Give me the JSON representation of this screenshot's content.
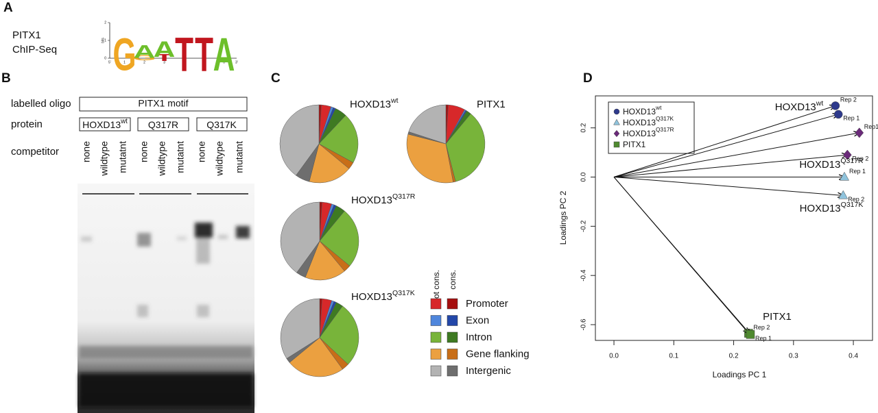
{
  "panel_a": {
    "label": "A",
    "lines": [
      "PITX1",
      "ChIP-Seq"
    ],
    "logo": {
      "y_label": "bits",
      "ylim": [
        0,
        2
      ],
      "yticks": [
        0,
        1,
        2
      ],
      "positions": [
        {
          "index": "1",
          "letters": [
            {
              "letter": "G",
              "bits": 1.85
            }
          ]
        },
        {
          "index": "2",
          "letters": [
            {
              "letter": "G",
              "bits": 0.3
            },
            {
              "letter": "A",
              "bits": 0.75
            }
          ]
        },
        {
          "index": "3",
          "letters": [
            {
              "letter": "T",
              "bits": 0.4
            },
            {
              "letter": "A",
              "bits": 0.9
            }
          ]
        },
        {
          "index": "4",
          "letters": [
            {
              "letter": "T",
              "bits": 1.95
            }
          ]
        },
        {
          "index": "5",
          "letters": [
            {
              "letter": "T",
              "bits": 1.95
            }
          ]
        },
        {
          "index": "6",
          "letters": [
            {
              "letter": "A",
              "bits": 1.9
            }
          ]
        }
      ],
      "end_5": "5'",
      "end_3": "3'",
      "colors": {
        "A": "#6dbf2b",
        "G": "#efa623",
        "T": "#c1161e"
      }
    }
  },
  "panel_b": {
    "label": "B",
    "row_labels": [
      "labelled oligo",
      "protein",
      "competitor"
    ],
    "oligo": "PITX1 motif",
    "proteins": [
      {
        "base": "HOXD13",
        "sup": "wt"
      },
      {
        "base": "Q317R"
      },
      {
        "base": "Q317K"
      }
    ],
    "competitors": [
      "none",
      "wildtype",
      "mutatnt",
      "none",
      "wildtype",
      "mutatnt",
      "none",
      "wildtype",
      "mutatnt"
    ]
  },
  "panel_c": {
    "type": "pie",
    "label": "C",
    "slice_colors": [
      "#a50f0f",
      "#d7282a",
      "#4f86dc",
      "#2347a8",
      "#3e7a22",
      "#78b43a",
      "#c86e18",
      "#eba040",
      "#6e6e6e",
      "#b3b3b3"
    ],
    "pies": [
      {
        "title": "HOXD13",
        "title_sup": "wt",
        "values": [
          1,
          4,
          1,
          1,
          5,
          21,
          3,
          18,
          6,
          40
        ]
      },
      {
        "title": "PITX1",
        "values": [
          1,
          7,
          0.5,
          0.5,
          2,
          35,
          1,
          32,
          1,
          20
        ]
      },
      {
        "title": "HOXD13",
        "title_sup": "Q317R",
        "values": [
          1,
          4,
          1,
          1,
          4,
          25,
          3,
          17,
          4,
          40
        ]
      },
      {
        "title": "HOXD13",
        "title_sup": "Q317K",
        "values": [
          1,
          4,
          1,
          1,
          3,
          27,
          3,
          24,
          2,
          34
        ]
      }
    ],
    "legend_headers": [
      "not cons.",
      "cons."
    ],
    "legend": [
      {
        "name": "Promoter",
        "not_cons_color": "#d7282a",
        "cons_color": "#a50f0f"
      },
      {
        "name": "Exon",
        "not_cons_color": "#4f86dc",
        "cons_color": "#2347a8"
      },
      {
        "name": "Intron",
        "not_cons_color": "#78b43a",
        "cons_color": "#3e7a22"
      },
      {
        "name": "Gene flanking",
        "not_cons_color": "#eba040",
        "cons_color": "#c86e18"
      },
      {
        "name": "Intergenic",
        "not_cons_color": "#b3b3b3",
        "cons_color": "#6e6e6e"
      }
    ]
  },
  "panel_d": {
    "type": "scatter",
    "label": "D",
    "x_label": "Loadings PC 1",
    "y_label": "Loadings PC 2",
    "xlim": [
      -0.031,
      0.432
    ],
    "ylim": [
      -0.664,
      0.33
    ],
    "xticks": [
      {
        "value": 0,
        "label": "0.0"
      },
      0.1,
      0.2,
      0.3,
      0.4
    ],
    "yticks": [
      -0.6,
      -0.4,
      -0.2,
      {
        "value": 0,
        "label": "0.0"
      },
      0.2
    ],
    "series": [
      {
        "name": "HOXD13",
        "name_sup": "wt",
        "marker": "circle",
        "color": "#2e3a8c",
        "x": [
          0.37,
          0.375
        ],
        "y": [
          0.29,
          0.255
        ],
        "point_labels": [
          "Rep 2",
          "Rep 1"
        ]
      },
      {
        "name": "HOXD13",
        "name_sup": "Q317K",
        "marker": "triangle",
        "color": "#8fc3dc",
        "x": [
          0.385,
          0.383
        ],
        "y": [
          0.0,
          -0.075
        ],
        "point_labels": [
          "Rep 1",
          "Rep 2"
        ]
      },
      {
        "name": "HOXD13",
        "name_sup": "Q317R",
        "marker": "diamond",
        "color": "#6b2a7a",
        "x": [
          0.41,
          0.39
        ],
        "y": [
          0.18,
          0.09
        ],
        "point_labels": [
          "Rep1",
          "Rep 2"
        ]
      },
      {
        "name": "PITX1",
        "marker": "square",
        "color": "#4f8a2f",
        "x": [
          0.225,
          0.228
        ],
        "y": [
          -0.635,
          -0.64
        ],
        "point_labels": [
          "Rep 2",
          "Rep 1"
        ]
      }
    ]
  }
}
